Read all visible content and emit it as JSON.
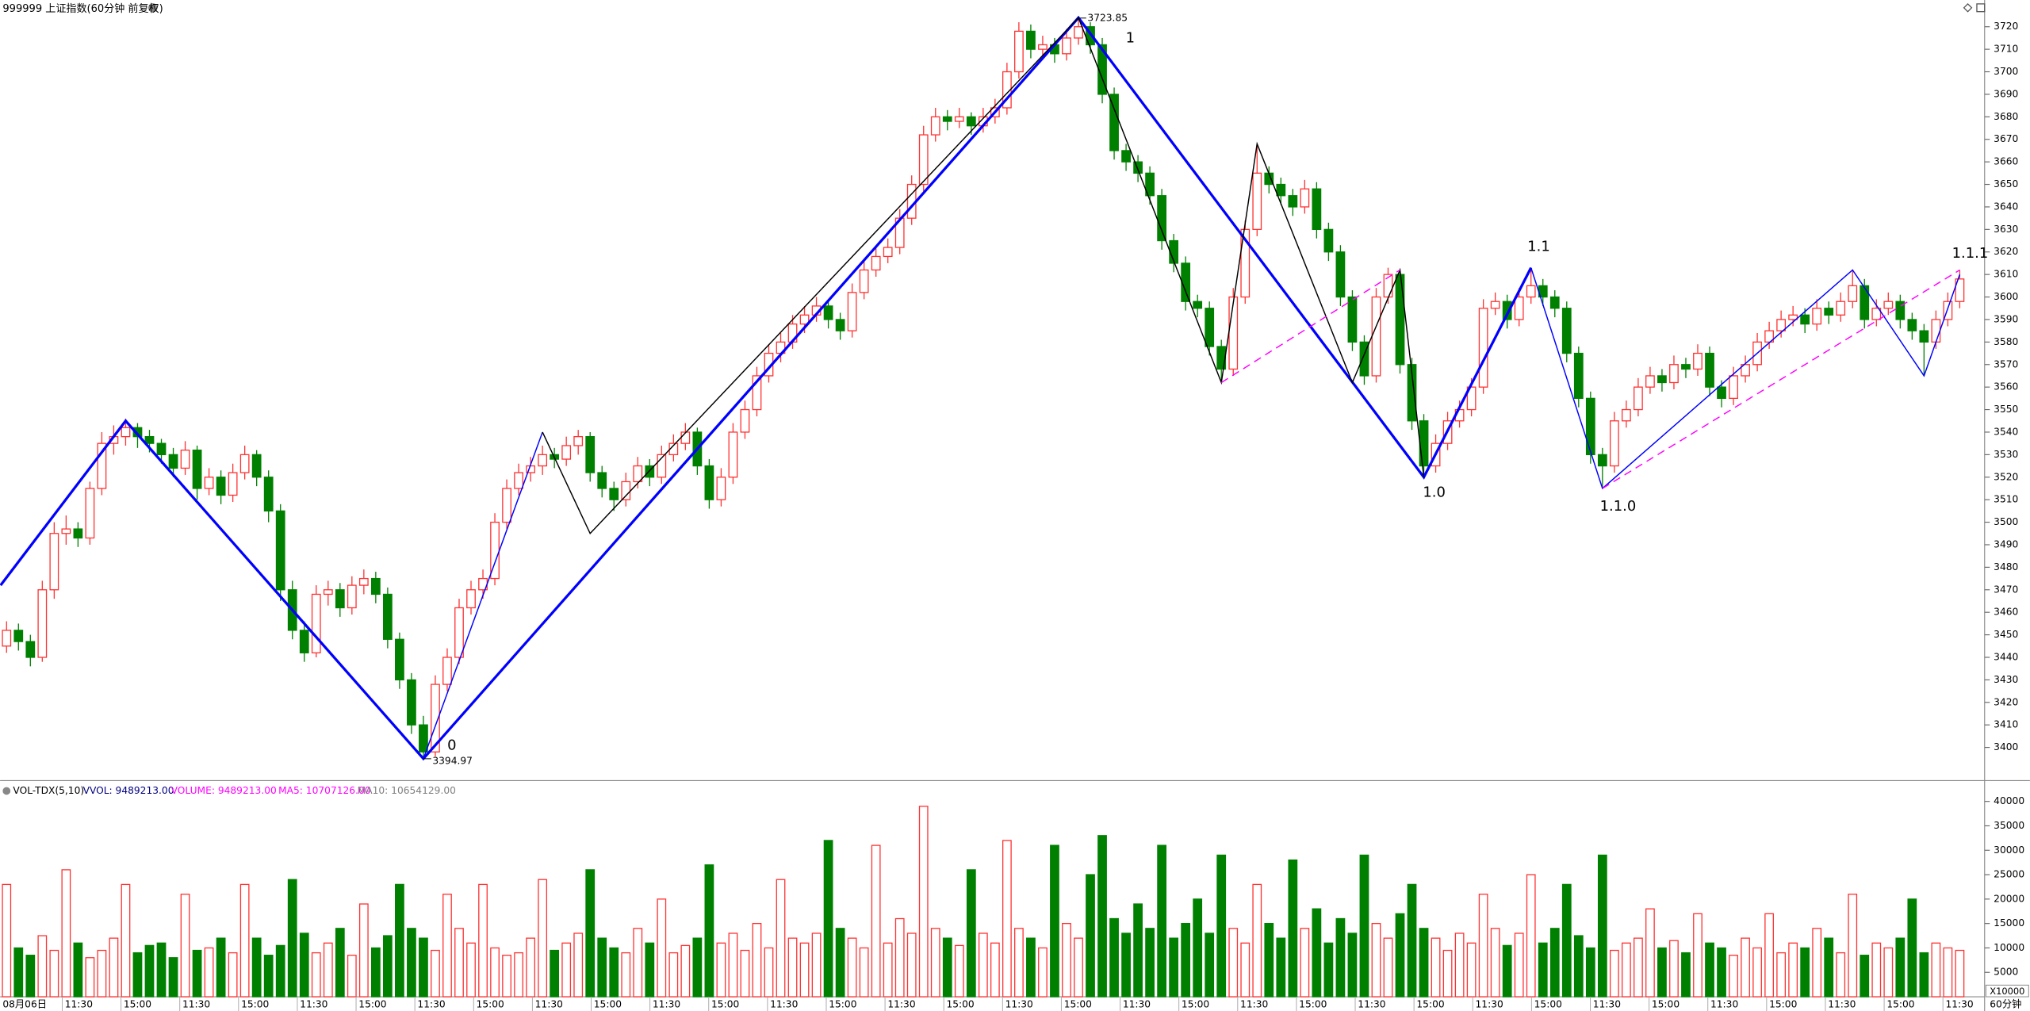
{
  "chart_data": [
    {
      "type": "candlestick",
      "title": "999999 上证指数(60分钟 前复权)",
      "up_color": "#ff3232",
      "down_color": "#008000",
      "open": [
        3445,
        3452,
        3447,
        3440,
        3470,
        3495,
        3497,
        3493,
        3515,
        3535,
        3538,
        3542,
        3538,
        3535,
        3530,
        3524,
        3532,
        3515,
        3520,
        3512,
        3522,
        3530,
        3520,
        3505,
        3470,
        3452,
        3442,
        3468,
        3470,
        3462,
        3472,
        3475,
        3468,
        3448,
        3430,
        3410,
        3398,
        3428,
        3440,
        3462,
        3470,
        3475,
        3500,
        3515,
        3522,
        3525,
        3530,
        3528,
        3534,
        3538,
        3522,
        3515,
        3510,
        3518,
        3525,
        3520,
        3530,
        3535,
        3540,
        3525,
        3510,
        3520,
        3540,
        3550,
        3565,
        3575,
        3580,
        3588,
        3592,
        3596,
        3590,
        3585,
        3602,
        3612,
        3618,
        3622,
        3635,
        3650,
        3672,
        3680,
        3678,
        3680,
        3676,
        3680,
        3684,
        3700,
        3718,
        3710,
        3712,
        3708,
        3715,
        3720,
        3712,
        3690,
        3665,
        3660,
        3655,
        3645,
        3625,
        3615,
        3598,
        3595,
        3578,
        3568,
        3600,
        3630,
        3655,
        3650,
        3645,
        3640,
        3648,
        3630,
        3620,
        3600,
        3580,
        3565,
        3600,
        3610,
        3570,
        3545,
        3525,
        3535,
        3545,
        3550,
        3560,
        3595,
        3598,
        3590,
        3600,
        3605,
        3600,
        3595,
        3575,
        3555,
        3530,
        3525,
        3545,
        3550,
        3560,
        3565,
        3562,
        3570,
        3568,
        3575,
        3560,
        3555,
        3565,
        3570,
        3580,
        3585,
        3590,
        3592,
        3588,
        3595,
        3592,
        3598,
        3605,
        3590,
        3595,
        3598,
        3590,
        3585,
        3580,
        3590,
        3598
      ],
      "high": [
        3456,
        3455,
        3450,
        3474,
        3500,
        3503,
        3500,
        3518,
        3540,
        3543,
        3546,
        3544,
        3541,
        3537,
        3533,
        3536,
        3534,
        3524,
        3523,
        3526,
        3534,
        3532,
        3523,
        3508,
        3474,
        3456,
        3472,
        3474,
        3473,
        3476,
        3479,
        3478,
        3471,
        3451,
        3433,
        3414,
        3432,
        3444,
        3466,
        3474,
        3479,
        3504,
        3519,
        3526,
        3529,
        3534,
        3533,
        3538,
        3541,
        3540,
        3525,
        3518,
        3522,
        3529,
        3528,
        3534,
        3539,
        3544,
        3542,
        3528,
        3524,
        3544,
        3554,
        3569,
        3579,
        3584,
        3592,
        3596,
        3600,
        3598,
        3593,
        3606,
        3616,
        3622,
        3626,
        3639,
        3654,
        3676,
        3684,
        3683,
        3684,
        3682,
        3684,
        3688,
        3704,
        3722,
        3721,
        3716,
        3715,
        3719,
        3724,
        3722,
        3715,
        3693,
        3668,
        3663,
        3658,
        3648,
        3628,
        3618,
        3601,
        3598,
        3581,
        3604,
        3634,
        3668,
        3658,
        3653,
        3648,
        3652,
        3651,
        3633,
        3623,
        3603,
        3583,
        3604,
        3613,
        3612,
        3573,
        3548,
        3539,
        3549,
        3554,
        3564,
        3599,
        3602,
        3601,
        3604,
        3613,
        3608,
        3603,
        3598,
        3578,
        3558,
        3533,
        3549,
        3554,
        3564,
        3569,
        3568,
        3574,
        3573,
        3579,
        3578,
        3563,
        3569,
        3574,
        3584,
        3589,
        3594,
        3596,
        3595,
        3599,
        3598,
        3602,
        3612,
        3608,
        3599,
        3602,
        3601,
        3593,
        3588,
        3594,
        3602,
        3612
      ],
      "low": [
        3442,
        3443,
        3436,
        3438,
        3466,
        3490,
        3489,
        3490,
        3512,
        3530,
        3534,
        3533,
        3531,
        3526,
        3520,
        3521,
        3510,
        3512,
        3508,
        3509,
        3519,
        3516,
        3500,
        3465,
        3448,
        3438,
        3440,
        3463,
        3458,
        3459,
        3468,
        3464,
        3444,
        3426,
        3406,
        3395,
        3396,
        3425,
        3437,
        3459,
        3466,
        3472,
        3497,
        3512,
        3518,
        3521,
        3524,
        3525,
        3530,
        3518,
        3511,
        3505,
        3507,
        3515,
        3516,
        3517,
        3527,
        3532,
        3521,
        3506,
        3507,
        3517,
        3537,
        3547,
        3562,
        3571,
        3577,
        3584,
        3589,
        3586,
        3581,
        3582,
        3599,
        3609,
        3615,
        3619,
        3632,
        3647,
        3669,
        3674,
        3675,
        3672,
        3673,
        3677,
        3681,
        3697,
        3706,
        3707,
        3704,
        3705,
        3712,
        3708,
        3686,
        3661,
        3656,
        3651,
        3641,
        3621,
        3611,
        3594,
        3591,
        3574,
        3562,
        3565,
        3597,
        3627,
        3646,
        3641,
        3636,
        3637,
        3626,
        3616,
        3596,
        3576,
        3561,
        3562,
        3597,
        3566,
        3541,
        3520,
        3522,
        3532,
        3542,
        3547,
        3557,
        3592,
        3586,
        3587,
        3597,
        3596,
        3591,
        3571,
        3551,
        3526,
        3515,
        3522,
        3542,
        3547,
        3557,
        3558,
        3559,
        3564,
        3565,
        3556,
        3551,
        3552,
        3562,
        3567,
        3577,
        3582,
        3587,
        3584,
        3585,
        3588,
        3589,
        3595,
        3586,
        3587,
        3592,
        3586,
        3581,
        3565,
        3577,
        3587,
        3595
      ],
      "close": [
        3452,
        3447,
        3440,
        3470,
        3495,
        3497,
        3493,
        3515,
        3535,
        3538,
        3542,
        3538,
        3535,
        3530,
        3524,
        3532,
        3515,
        3520,
        3512,
        3522,
        3530,
        3520,
        3505,
        3470,
        3452,
        3442,
        3468,
        3470,
        3462,
        3472,
        3475,
        3468,
        3448,
        3430,
        3410,
        3398,
        3428,
        3440,
        3462,
        3470,
        3475,
        3500,
        3515,
        3522,
        3525,
        3530,
        3528,
        3534,
        3538,
        3522,
        3515,
        3510,
        3518,
        3525,
        3520,
        3530,
        3535,
        3540,
        3525,
        3510,
        3520,
        3540,
        3550,
        3565,
        3575,
        3580,
        3588,
        3592,
        3596,
        3590,
        3585,
        3602,
        3612,
        3618,
        3622,
        3635,
        3650,
        3672,
        3680,
        3678,
        3680,
        3676,
        3680,
        3684,
        3700,
        3718,
        3710,
        3712,
        3708,
        3715,
        3720,
        3712,
        3690,
        3665,
        3660,
        3655,
        3645,
        3625,
        3615,
        3598,
        3595,
        3578,
        3568,
        3600,
        3630,
        3655,
        3650,
        3645,
        3640,
        3648,
        3630,
        3620,
        3600,
        3580,
        3565,
        3600,
        3610,
        3570,
        3545,
        3525,
        3535,
        3545,
        3550,
        3560,
        3595,
        3598,
        3590,
        3600,
        3605,
        3600,
        3595,
        3575,
        3555,
        3530,
        3525,
        3545,
        3550,
        3560,
        3565,
        3562,
        3570,
        3568,
        3575,
        3560,
        3555,
        3565,
        3570,
        3580,
        3585,
        3590,
        3592,
        3588,
        3595,
        3592,
        3598,
        3605,
        3590,
        3595,
        3598,
        3590,
        3585,
        3580,
        3590,
        3598,
        3608
      ],
      "ylim": [
        3387,
        3729
      ],
      "yticks": [
        3400,
        3410,
        3420,
        3430,
        3440,
        3450,
        3460,
        3470,
        3480,
        3490,
        3500,
        3510,
        3520,
        3530,
        3540,
        3550,
        3560,
        3570,
        3580,
        3590,
        3600,
        3610,
        3620,
        3630,
        3640,
        3650,
        3660,
        3670,
        3680,
        3690,
        3700,
        3710,
        3720
      ],
      "lines": [
        {
          "color": "#0000ff",
          "dashed": false,
          "x": [
            -0.5,
            10,
            35,
            90,
            119,
            128
          ],
          "values": [
            3472,
            3545,
            3395,
            3724,
            3520,
            3613
          ]
        },
        {
          "color": "#0000ff",
          "dashed": false,
          "x": [
            128,
            134,
            155,
            161,
            164
          ],
          "values": [
            3613,
            3515,
            3612,
            3565,
            3610
          ]
        },
        {
          "color": "#0000ff",
          "dashed": false,
          "x": [
            35,
            45
          ],
          "values": [
            3395,
            3540
          ]
        },
        {
          "color": "#000000",
          "dashed": false,
          "x": [
            45,
            49,
            90,
            102,
            105,
            113,
            117,
            119
          ],
          "values": [
            3540,
            3495,
            3724,
            3562,
            3668,
            3562,
            3612,
            3520
          ]
        },
        {
          "color": "#ff00ff",
          "dashed": true,
          "x": [
            102,
            117
          ],
          "values": [
            3562,
            3612
          ]
        },
        {
          "color": "#ff00ff",
          "dashed": true,
          "x": [
            134,
            164
          ],
          "values": [
            3515,
            3612
          ]
        }
      ],
      "annotations": [
        {
          "text": "0",
          "x": 35,
          "y": 3395
        },
        {
          "text": "1",
          "x": 90,
          "y": 3724
        },
        {
          "text": "1.0",
          "x": 119,
          "y": 3520
        },
        {
          "text": "1.1",
          "x": 128,
          "y": 3613
        },
        {
          "text": "1.1.0",
          "x": 134,
          "y": 3515
        },
        {
          "text": "1.1.1",
          "x": 164,
          "y": 3610
        }
      ],
      "price_labels": [
        {
          "x": 90,
          "value": 3723.85
        },
        {
          "x": 35,
          "value": 3394.97
        }
      ]
    },
    {
      "type": "bar",
      "legend": [
        {
          "text": "VOL-TDX(5,10)",
          "color": "#000000"
        },
        {
          "text": "VVOL: 9489213.00",
          "color": "#000080"
        },
        {
          "text": "VOLUME: 9489213.00",
          "color": "#ff00ff"
        },
        {
          "text": "MA5: 10707126.00",
          "color": "#ff00ff"
        },
        {
          "text": "MA10: 10654129.00",
          "color": "#808080"
        }
      ],
      "values": [
        23000,
        10000,
        8500,
        12500,
        9500,
        26000,
        11000,
        8000,
        9500,
        12000,
        23000,
        9000,
        10500,
        11000,
        8000,
        21000,
        9500,
        10000,
        12000,
        9000,
        23000,
        12000,
        8500,
        10500,
        24000,
        13000,
        9000,
        11000,
        14000,
        8500,
        19000,
        10000,
        12500,
        23000,
        14000,
        12000,
        9500,
        21000,
        14000,
        11000,
        23000,
        10000,
        8500,
        9000,
        12000,
        24000,
        9500,
        11000,
        13000,
        26000,
        12000,
        10000,
        9000,
        14000,
        11000,
        20000,
        9000,
        10500,
        12000,
        27000,
        11000,
        13000,
        9500,
        15000,
        10000,
        24000,
        12000,
        11000,
        13000,
        32000,
        14000,
        12000,
        10000,
        31000,
        11000,
        16000,
        13000,
        39000,
        14000,
        12000,
        10500,
        26000,
        13000,
        11000,
        32000,
        14000,
        12000,
        10000,
        31000,
        15000,
        12000,
        25000,
        33000,
        16000,
        13000,
        19000,
        14000,
        31000,
        12000,
        15000,
        20000,
        13000,
        29000,
        14000,
        11000,
        23000,
        15000,
        12000,
        28000,
        14000,
        18000,
        11000,
        16000,
        13000,
        29000,
        15000,
        12000,
        17000,
        23000,
        14000,
        12000,
        9500,
        13000,
        11000,
        21000,
        14000,
        10500,
        13000,
        25000,
        11000,
        14000,
        23000,
        12500,
        10000,
        29000,
        9500,
        11000,
        12000,
        18000,
        10000,
        11500,
        9000,
        17000,
        11000,
        10000,
        8500,
        12000,
        10000,
        17000,
        9000,
        11000,
        10000,
        14000,
        12000,
        9000,
        21000,
        8500,
        11000,
        10000,
        12000,
        20000,
        9000,
        11000,
        10000,
        9500
      ],
      "ylim": [
        0,
        44000
      ],
      "yticks": [
        5000,
        10000,
        15000,
        20000,
        25000,
        30000,
        35000,
        40000
      ],
      "unit_label": "X10000",
      "period": "60分钟",
      "time_labels": [
        "08月06日",
        "11:30",
        "15:00",
        "11:30",
        "15:00",
        "11:30",
        "15:00",
        "11:30",
        "15:00",
        "11:30",
        "15:00",
        "11:30",
        "15:00",
        "11:30",
        "15:00",
        "11:30",
        "15:00",
        "11:30",
        "15:00",
        "11:30",
        "15:00",
        "11:30",
        "15:00",
        "11:30",
        "15:00",
        "11:30",
        "15:00",
        "11:30",
        "15:00",
        "11:30",
        "15:00",
        "11:30",
        "15:00",
        "11:30"
      ]
    }
  ]
}
